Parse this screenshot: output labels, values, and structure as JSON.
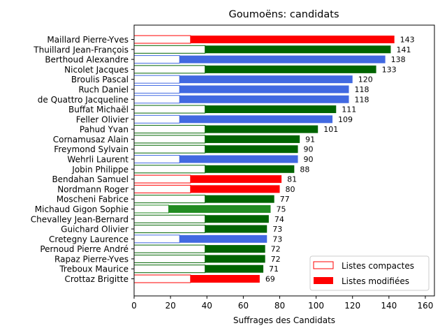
{
  "chart_data": {
    "type": "bar",
    "orientation": "horizontal",
    "title": "Goumoëns: candidats",
    "xlabel": "Suffrages des Candidats",
    "ylabel": "",
    "xlim": [
      0,
      165
    ],
    "xticks": [
      0,
      20,
      40,
      60,
      80,
      100,
      120,
      140,
      160
    ],
    "grid": false,
    "legend_position": "bottom-right",
    "legend": [
      {
        "label": "Listes compactes",
        "style": "outline",
        "color": "#ff0000"
      },
      {
        "label": "Listes modifiées",
        "style": "filled",
        "color": "#ff0000"
      }
    ],
    "categories": [
      "Maillard Pierre-Yves",
      "Thuillard Jean-François",
      "Berthoud Alexandre",
      "Nicolet Jacques",
      "Broulis Pascal",
      "Ruch Daniel",
      "de Quattro Jacqueline",
      "Buffat Michaël",
      "Feller Olivier",
      "Pahud Yvan",
      "Cornamusaz Alain",
      "Freymond Sylvain",
      "Wehrli Laurent",
      "Jobin Philippe",
      "Bendahan Samuel",
      "Nordmann Roger",
      "Moscheni Fabrice",
      "Michaud Gigon Sophie",
      "Chevalley Jean-Bernard",
      "Guichard Olivier",
      "Cretegny Laurence",
      "Pernoud Pierre André",
      "Rapaz Pierre-Yves",
      "Treboux Maurice",
      "Crottaz Brigitte"
    ],
    "series": [
      {
        "name": "Listes compactes",
        "values": [
          31,
          39,
          25,
          39,
          25,
          25,
          25,
          39,
          25,
          39,
          39,
          39,
          25,
          39,
          31,
          31,
          39,
          19,
          39,
          39,
          25,
          39,
          39,
          39,
          31
        ]
      },
      {
        "name": "Listes modifiées",
        "values": [
          112,
          102,
          113,
          94,
          95,
          93,
          93,
          72,
          84,
          62,
          52,
          51,
          65,
          49,
          50,
          49,
          38,
          56,
          35,
          34,
          48,
          33,
          33,
          32,
          38
        ]
      }
    ],
    "totals": [
      143,
      141,
      138,
      133,
      120,
      118,
      118,
      111,
      109,
      101,
      91,
      90,
      90,
      88,
      81,
      80,
      77,
      75,
      74,
      73,
      73,
      72,
      72,
      71,
      69
    ],
    "colors": [
      "#ff0000",
      "#006400",
      "#4169e1",
      "#006400",
      "#4169e1",
      "#4169e1",
      "#4169e1",
      "#006400",
      "#4169e1",
      "#006400",
      "#006400",
      "#006400",
      "#4169e1",
      "#006400",
      "#ff0000",
      "#ff0000",
      "#006400",
      "#228b22",
      "#006400",
      "#006400",
      "#4169e1",
      "#006400",
      "#006400",
      "#006400",
      "#ff0000"
    ]
  }
}
